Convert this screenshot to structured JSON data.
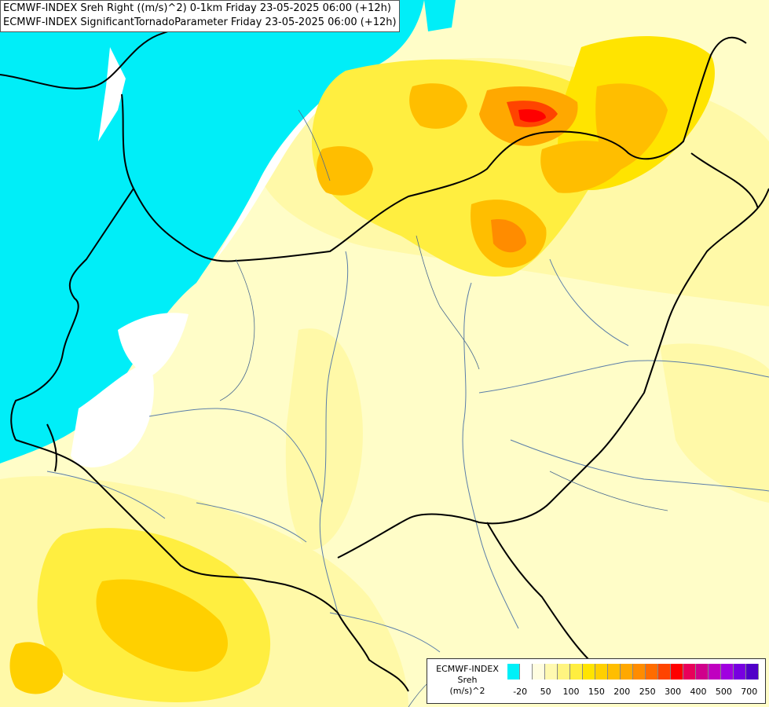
{
  "title": {
    "line1": "ECMWF-INDEX Sreh Right ((m/s)^2) 0-1km Friday 23-05-2025 06:00 (+12h)",
    "line2": "ECMWF-INDEX SignificantTornadoParameter Friday 23-05-2025 06:00 (+12h)"
  },
  "legend": {
    "line1": "ECMWF-INDEX",
    "line2": "Sreh",
    "line3": "(m/s)^2",
    "colors": [
      "#00f0f8",
      "#ffffff",
      "#fffde0",
      "#fff9b0",
      "#fff480",
      "#ffee40",
      "#ffe400",
      "#ffd000",
      "#ffbe00",
      "#ffa800",
      "#ff8c00",
      "#ff6c00",
      "#ff4400",
      "#ff0000",
      "#e8005a",
      "#d0008c",
      "#c000c0",
      "#a000e0",
      "#7800e0",
      "#5000c8"
    ],
    "ticks": [
      "-20",
      "50",
      "100",
      "150",
      "200",
      "250",
      "300",
      "400",
      "500",
      "700"
    ]
  },
  "map": {
    "sea_color": "#00eef8",
    "land_color": "#fffdc8",
    "border_color": "#000000",
    "river_color": "#5a7da8"
  }
}
